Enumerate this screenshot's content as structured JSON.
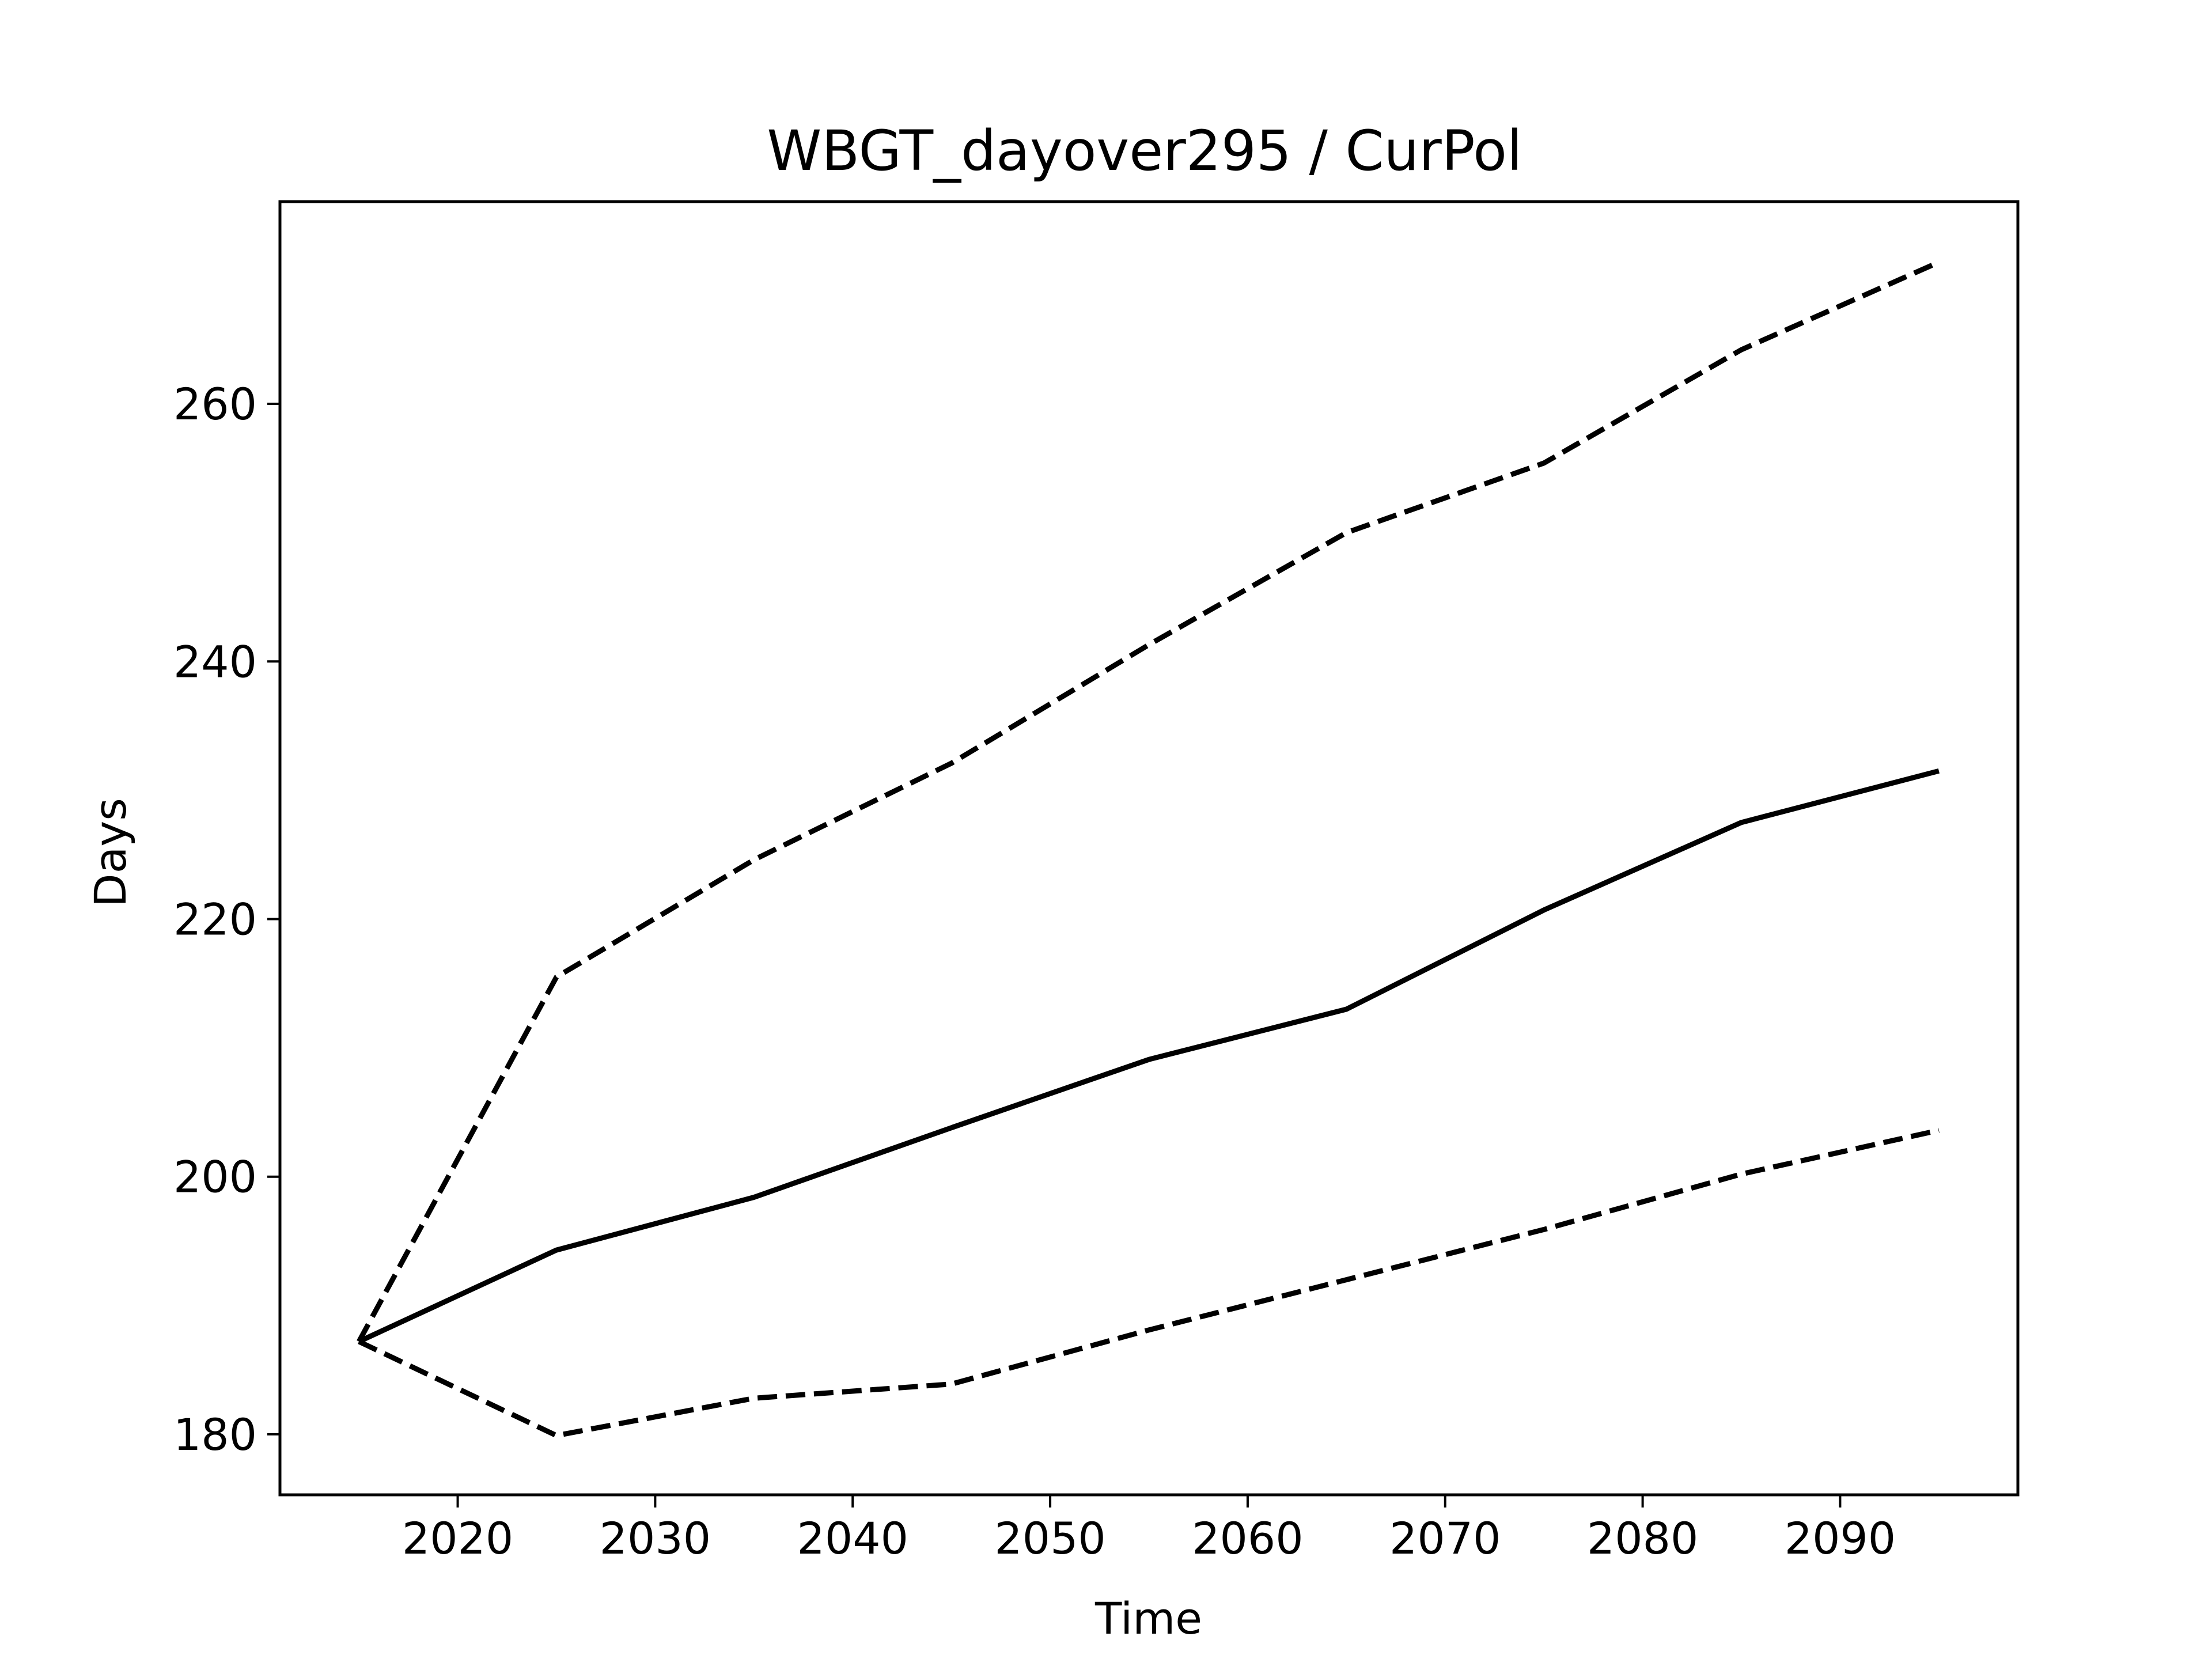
{
  "chart_data": {
    "type": "line",
    "title": "WBGT_dayover295 / CurPol",
    "xlabel": "Time",
    "ylabel": "Days",
    "xlim": [
      2011,
      2099
    ],
    "ylim": [
      175.3,
      275.7
    ],
    "xticks": [
      2020,
      2030,
      2040,
      2050,
      2060,
      2070,
      2080,
      2090
    ],
    "yticks": [
      180,
      200,
      220,
      240,
      260
    ],
    "grid": false,
    "legend": "none",
    "x": [
      2015,
      2025,
      2035,
      2045,
      2055,
      2065,
      2075,
      2085,
      2095
    ],
    "series": [
      {
        "style": "solid",
        "color": "#000000",
        "values": [
          187.2,
          194.3,
          198.4,
          203.8,
          209.1,
          213.0,
          220.7,
          227.5,
          231.5
        ]
      },
      {
        "style": "dashed",
        "color": "#000000",
        "values": [
          187.2,
          215.5,
          224.6,
          232.1,
          241.3,
          250.0,
          255.4,
          264.2,
          271.0
        ]
      },
      {
        "style": "dashed",
        "color": "#000000",
        "values": [
          187.2,
          179.9,
          182.8,
          183.9,
          188.1,
          192.0,
          195.9,
          200.2,
          203.6
        ]
      }
    ]
  }
}
